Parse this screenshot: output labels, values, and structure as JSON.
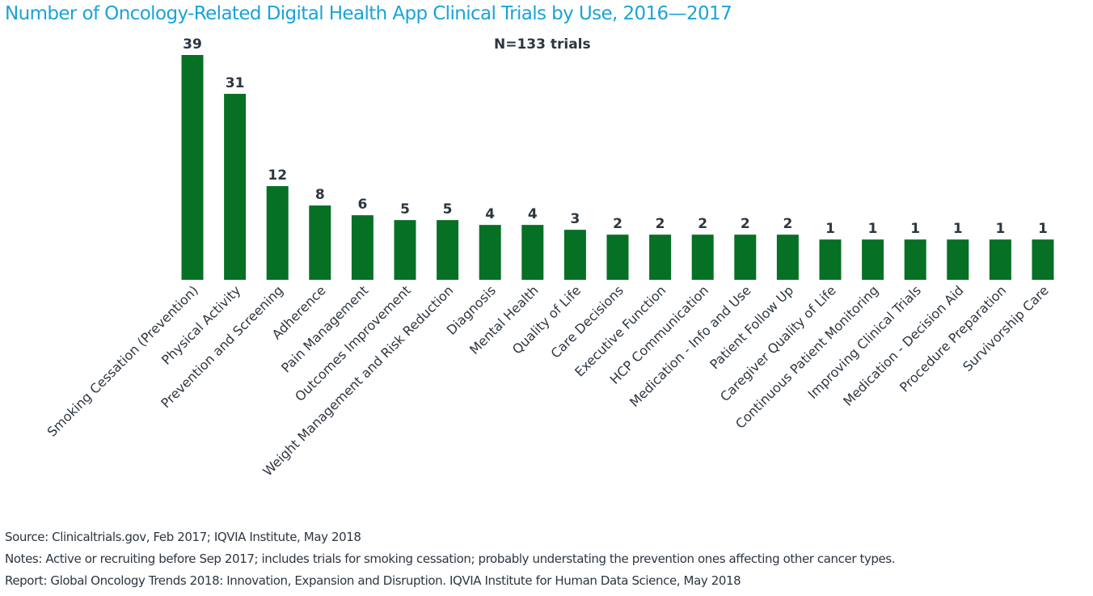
{
  "chart_data": {
    "type": "bar",
    "title": "Number of Oncology-Related Digital Health App Clinical Trials by Use, 2016—2017",
    "subtitle": "N=133 trials",
    "xlabel": "",
    "ylabel": "",
    "grid": false,
    "legend": "none",
    "bar_color": "#067025",
    "categories": [
      "Smoking Cessation (Prevention)",
      "Physical Activity",
      "Prevention and Screening",
      "Adherence",
      "Pain Management",
      "Outcomes Improvement",
      "Weight Management and Risk Reduction",
      "Diagnosis",
      "Mental Health",
      "Quality of Life",
      "Care Decisions",
      "Executive Function",
      "HCP Communication",
      "Medication -  Info and Use",
      "Patient Follow Up",
      "Caregiver Quality of Life",
      "Continuous Patient Monitoring",
      "Improving Clinical Trials",
      "Medication - Decision Aid",
      "Procedure Preparation",
      "Survivorship Care"
    ],
    "values": [
      39,
      31,
      12,
      8,
      6,
      5,
      5,
      4,
      4,
      3,
      2,
      2,
      2,
      2,
      2,
      1,
      1,
      1,
      1,
      1,
      1
    ],
    "data_labels": [
      "39",
      "31",
      "12",
      "8",
      "6",
      "5",
      "5",
      "4",
      "4",
      "3",
      "2",
      "2",
      "2",
      "2",
      "2",
      "1",
      "1",
      "1",
      "1",
      "1",
      "1"
    ],
    "ylim": [
      -7.3,
      39
    ]
  },
  "footer": {
    "source": "Source: Clinicaltrials.gov, Feb 2017; IQVIA Institute, May 2018",
    "notes": "Notes: Active or recruiting before Sep 2017; includes trials for smoking cessation; probably understating the prevention ones affecting other cancer types.",
    "report": "Report: Global Oncology Trends 2018: Innovation, Expansion and Disruption. IQVIA Institute for Human Data Science, May 2018"
  }
}
